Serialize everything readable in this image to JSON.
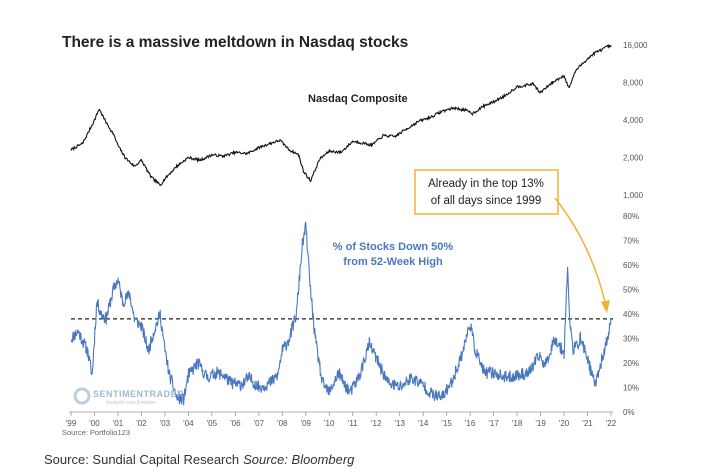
{
  "chart_data": [
    {
      "type": "line",
      "scale": "log",
      "title": "There is a massive meltdown in Nasdaq stocks",
      "series_label": "Nasdaq Composite",
      "color": "#111111",
      "y_ticks": [
        "16,000",
        "8,000",
        "4,000",
        "2,000",
        "1,000"
      ],
      "y_tick_values": [
        16000,
        8000,
        4000,
        2000,
        1000
      ],
      "x": [
        1999.0,
        1999.5,
        2000.0,
        2000.2,
        2000.5,
        2000.8,
        2001.0,
        2001.3,
        2001.7,
        2002.0,
        2002.4,
        2002.8,
        2003.0,
        2003.5,
        2004.0,
        2004.5,
        2005.0,
        2005.5,
        2006.0,
        2006.5,
        2007.0,
        2007.5,
        2007.9,
        2008.3,
        2008.7,
        2008.9,
        2009.2,
        2009.6,
        2010.0,
        2010.5,
        2011.0,
        2011.5,
        2011.8,
        2012.3,
        2012.8,
        2013.3,
        2013.8,
        2014.3,
        2014.8,
        2015.3,
        2015.8,
        2016.1,
        2016.6,
        2017.0,
        2017.5,
        2018.0,
        2018.7,
        2018.98,
        2019.5,
        2020.0,
        2020.2,
        2020.5,
        2020.9,
        2021.3,
        2021.7,
        2021.9,
        2022.0
      ],
      "values": [
        2300,
        2600,
        4000,
        4900,
        3800,
        3100,
        2500,
        2000,
        1700,
        1900,
        1400,
        1200,
        1350,
        1700,
        2000,
        1900,
        2100,
        2050,
        2200,
        2150,
        2400,
        2600,
        2750,
        2300,
        2100,
        1550,
        1300,
        1950,
        2250,
        2200,
        2700,
        2600,
        2500,
        3000,
        2950,
        3400,
        3900,
        4200,
        4700,
        5000,
        4800,
        4500,
        5200,
        5600,
        6300,
        7400,
        7800,
        6600,
        8000,
        9100,
        7200,
        10000,
        11900,
        13800,
        15000,
        15700,
        15400
      ]
    },
    {
      "type": "line",
      "title": "% of Stocks Down 50% from 52-Week High",
      "annotation_line1": "% of Stocks Down 50%",
      "annotation_line2": "from 52-Week High",
      "color": "#4a78bf",
      "ylim": [
        0,
        80
      ],
      "y_ticks": [
        "80%",
        "70%",
        "60%",
        "50%",
        "40%",
        "30%",
        "20%",
        "10%",
        "0%"
      ],
      "y_tick_values": [
        80,
        70,
        60,
        50,
        40,
        30,
        20,
        10,
        0
      ],
      "threshold": 38,
      "x": [
        1999.0,
        1999.3,
        1999.7,
        1999.9,
        2000.1,
        2000.3,
        2000.5,
        2000.8,
        2001.0,
        2001.2,
        2001.5,
        2001.7,
        2002.0,
        2002.3,
        2002.5,
        2002.8,
        2003.0,
        2003.2,
        2003.5,
        2003.8,
        2004.0,
        2004.4,
        2004.8,
        2005.2,
        2005.5,
        2005.8,
        2006.2,
        2006.6,
        2007.0,
        2007.5,
        2007.8,
        2008.0,
        2008.3,
        2008.6,
        2008.85,
        2009.0,
        2009.2,
        2009.4,
        2009.7,
        2010.0,
        2010.4,
        2010.6,
        2010.9,
        2011.3,
        2011.7,
        2012.0,
        2012.5,
        2013.0,
        2013.5,
        2014.0,
        2014.4,
        2014.8,
        2015.2,
        2015.6,
        2016.0,
        2016.2,
        2016.6,
        2017.0,
        2017.5,
        2018.0,
        2018.5,
        2018.95,
        2019.2,
        2019.6,
        2020.0,
        2020.15,
        2020.25,
        2020.4,
        2020.7,
        2021.0,
        2021.3,
        2021.7,
        2021.9,
        2022.0
      ],
      "values": [
        30,
        33,
        25,
        15,
        45,
        40,
        38,
        50,
        54,
        45,
        48,
        38,
        35,
        25,
        32,
        40,
        25,
        15,
        6,
        5,
        15,
        20,
        14,
        16,
        15,
        12,
        11,
        14,
        10,
        12,
        15,
        25,
        30,
        40,
        68,
        76,
        50,
        30,
        12,
        8,
        16,
        12,
        8,
        15,
        28,
        22,
        12,
        10,
        14,
        11,
        7,
        6,
        12,
        22,
        36,
        26,
        16,
        16,
        14,
        15,
        16,
        23,
        19,
        30,
        24,
        60,
        35,
        25,
        30,
        22,
        11,
        24,
        32,
        38
      ]
    }
  ],
  "x_axis": {
    "labels": [
      "'99",
      "'00",
      "'01",
      "'02",
      "'03",
      "'04",
      "'05",
      "'06",
      "'07",
      "'08",
      "'09",
      "'10",
      "'11",
      "'12",
      "'13",
      "'14",
      "'15",
      "'16",
      "'17",
      "'18",
      "'19",
      "'20",
      "'21",
      "'22"
    ],
    "values": [
      1999,
      2000,
      2001,
      2002,
      2003,
      2004,
      2005,
      2006,
      2007,
      2008,
      2009,
      2010,
      2011,
      2012,
      2013,
      2014,
      2015,
      2016,
      2017,
      2018,
      2019,
      2020,
      2021,
      2022
    ]
  },
  "callout": {
    "line1": "Already in the top 13%",
    "line2": "of all days since 1999",
    "border_color": "#f0b330",
    "arrow_color": "#f0b330"
  },
  "watermark": {
    "name": "SENTIMENTRADER",
    "tagline": "Analysis over Emotion"
  },
  "chart_source": "Source: Portfolio123",
  "caption": {
    "part1": "Source: Sundial Capital Research",
    "part2": "Source: Bloomberg"
  }
}
